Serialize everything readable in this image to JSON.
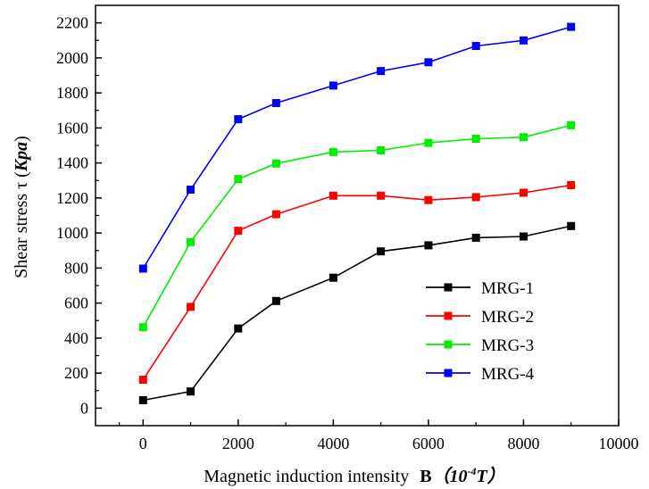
{
  "chart_data": {
    "type": "line",
    "title": "",
    "xlabel_prefix": "Magnetic induction intensity",
    "xlabel_symbol": "B",
    "xlabel_unit_open": "（",
    "xlabel_unit_base": "10",
    "xlabel_unit_exp": "-4",
    "xlabel_unit_letter": "T",
    "xlabel_unit_close": "）",
    "ylabel_prefix": "Shear stress τ",
    "ylabel_unit_open": " (",
    "ylabel_unit": "Kpa",
    "ylabel_unit_close": ")",
    "xlim": [
      -1000,
      10000
    ],
    "ylim": [
      -100,
      2300
    ],
    "xticks": [
      0,
      2000,
      4000,
      6000,
      8000,
      10000
    ],
    "yticks": [
      0,
      200,
      400,
      600,
      800,
      1000,
      1200,
      1400,
      1600,
      1800,
      2000,
      2200
    ],
    "legend_position": "right-middle",
    "grid": false,
    "x": [
      0,
      1000,
      2000,
      2800,
      4000,
      5000,
      6000,
      7000,
      8000,
      9000
    ],
    "series": [
      {
        "name": "MRG-1",
        "color": "#000000",
        "values": [
          45,
          95,
          455,
          612,
          745,
          895,
          930,
          973,
          980,
          1040
        ]
      },
      {
        "name": "MRG-2",
        "color": "#ff0000",
        "values": [
          162,
          578,
          1013,
          1107,
          1213,
          1213,
          1188,
          1205,
          1230,
          1273
        ]
      },
      {
        "name": "MRG-3",
        "color": "#00ee00",
        "values": [
          462,
          948,
          1308,
          1397,
          1463,
          1472,
          1515,
          1538,
          1547,
          1615
        ]
      },
      {
        "name": "MRG-4",
        "color": "#0000ff",
        "values": [
          797,
          1248,
          1650,
          1742,
          1842,
          1925,
          1975,
          2068,
          2100,
          2177
        ]
      }
    ]
  }
}
